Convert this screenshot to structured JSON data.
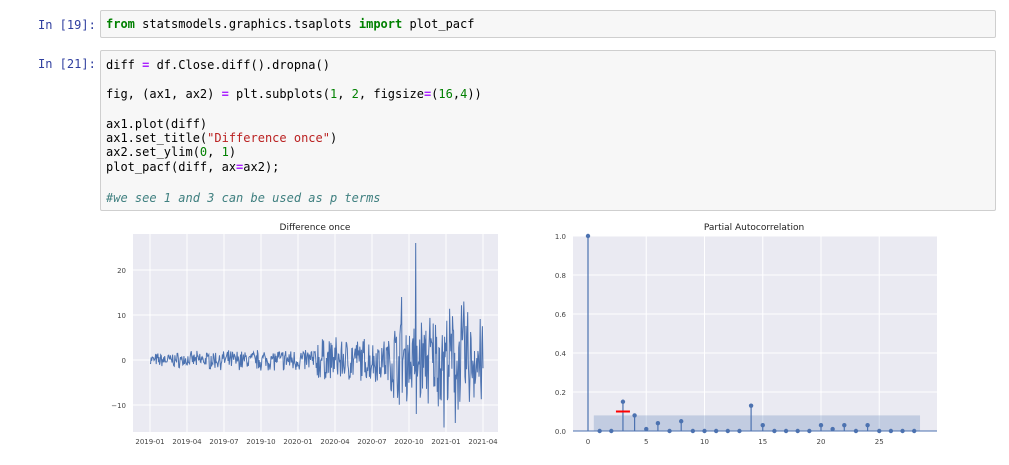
{
  "cells": [
    {
      "prompt": "In [19]:",
      "lines": [
        "from statsmodels.graphics.tsaplots import plot_pacf"
      ]
    },
    {
      "prompt": "In [21]:",
      "lines": [
        "diff = df.Close.diff().dropna()",
        "",
        "fig, (ax1, ax2) = plt.subplots(1, 2, figsize=(16,4))",
        "",
        "ax1.plot(diff)",
        "ax1.set_title(\"Difference once\")",
        "ax2.set_ylim(0, 1)",
        "plot_pacf(diff, ax=ax2);",
        "",
        "#we see 1 and 3 can be used as p terms"
      ]
    }
  ],
  "chart_data": [
    {
      "type": "line",
      "title": "Difference once",
      "xlabel": "",
      "ylabel": "",
      "x_tick_labels": [
        "2019-01",
        "2019-04",
        "2019-07",
        "2019-10",
        "2020-01",
        "2020-04",
        "2020-07",
        "2020-10",
        "2021-01",
        "2021-04"
      ],
      "y_ticks": [
        -10,
        0,
        10,
        20
      ],
      "ylim": [
        -16,
        28
      ],
      "series": [
        {
          "color": "#4c72b0"
        }
      ]
    },
    {
      "type": "scatter",
      "title": "Partial Autocorrelation",
      "xlabel": "",
      "ylabel": "",
      "x_ticks": [
        0,
        5,
        10,
        15,
        20,
        25
      ],
      "y_ticks": [
        "0.0",
        "0.2",
        "0.4",
        "0.6",
        "0.8",
        "1.0"
      ],
      "xlim": [
        -1,
        30
      ],
      "ylim": [
        0,
        1
      ],
      "confidence_band": 0.08,
      "lags": [
        0,
        1,
        2,
        3,
        4,
        5,
        6,
        7,
        8,
        9,
        10,
        11,
        12,
        13,
        14,
        15,
        16,
        17,
        18,
        19,
        20,
        21,
        22,
        23,
        24,
        25,
        26,
        27,
        28
      ],
      "values": [
        1.0,
        0.0,
        0.0,
        0.15,
        0.08,
        0.01,
        0.04,
        0.0,
        0.05,
        0.0,
        0.0,
        0.0,
        0.0,
        0.0,
        0.13,
        0.03,
        0.0,
        0.0,
        0.0,
        0.0,
        0.03,
        0.01,
        0.03,
        0.0,
        0.03,
        0.0,
        0.0,
        0.0,
        0.0
      ],
      "annotation": {
        "lag": 3,
        "value": 0.1,
        "color": "#ff0000"
      },
      "color": "#4c72b0",
      "background": "#eaeaf2"
    }
  ]
}
